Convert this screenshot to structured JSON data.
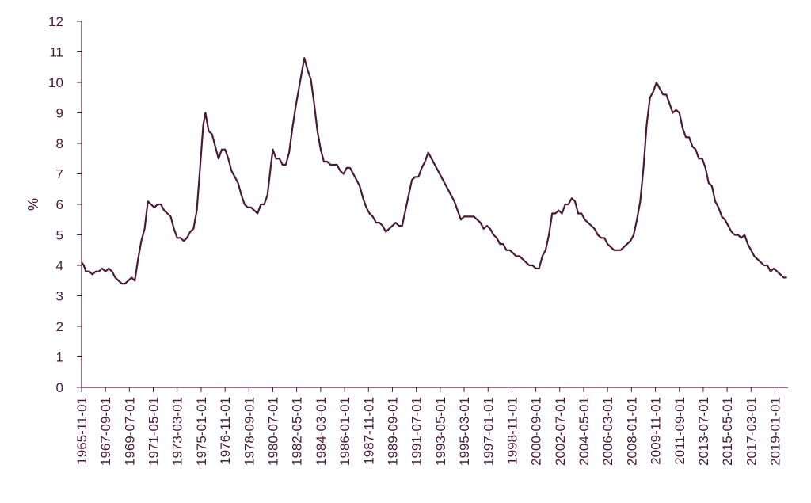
{
  "chart_data": {
    "type": "line",
    "title": "",
    "xlabel": "",
    "ylabel": "%",
    "ylim": [
      0,
      12
    ],
    "yticks": [
      0,
      1,
      2,
      3,
      4,
      5,
      6,
      7,
      8,
      9,
      10,
      11,
      12
    ],
    "xlim": [
      "1965-11-01",
      "2020-01-01"
    ],
    "grid": false,
    "legend": "none",
    "line_color": "#4a1b35",
    "xticks": [
      "1965-11-01",
      "1967-09-01",
      "1969-07-01",
      "1971-05-01",
      "1973-03-01",
      "1975-01-01",
      "1976-11-01",
      "1978-09-01",
      "1980-07-01",
      "1982-05-01",
      "1984-03-01",
      "1986-01-01",
      "1987-11-01",
      "1989-09-01",
      "1991-07-01",
      "1993-05-01",
      "1995-03-01",
      "1997-01-01",
      "1998-11-01",
      "2000-09-01",
      "2002-07-01",
      "2004-05-01",
      "2006-03-01",
      "2008-01-01",
      "2009-11-01",
      "2011-09-01",
      "2013-07-01",
      "2015-05-01",
      "2017-03-01",
      "2019-01-01"
    ],
    "series": [
      {
        "values": [
          [
            "1965-11-01",
            4.1
          ],
          [
            "1966-01-01",
            4.0
          ],
          [
            "1966-03-01",
            3.8
          ],
          [
            "1966-06-01",
            3.8
          ],
          [
            "1966-09-01",
            3.7
          ],
          [
            "1966-12-01",
            3.8
          ],
          [
            "1967-03-01",
            3.8
          ],
          [
            "1967-06-01",
            3.9
          ],
          [
            "1967-09-01",
            3.8
          ],
          [
            "1967-12-01",
            3.9
          ],
          [
            "1968-03-01",
            3.8
          ],
          [
            "1968-06-01",
            3.6
          ],
          [
            "1968-09-01",
            3.5
          ],
          [
            "1968-12-01",
            3.4
          ],
          [
            "1969-03-01",
            3.4
          ],
          [
            "1969-06-01",
            3.5
          ],
          [
            "1969-09-01",
            3.6
          ],
          [
            "1969-12-01",
            3.5
          ],
          [
            "1970-03-01",
            4.2
          ],
          [
            "1970-06-01",
            4.8
          ],
          [
            "1970-09-01",
            5.2
          ],
          [
            "1970-12-01",
            6.1
          ],
          [
            "1971-03-01",
            6.0
          ],
          [
            "1971-06-01",
            5.9
          ],
          [
            "1971-09-01",
            6.0
          ],
          [
            "1971-12-01",
            6.0
          ],
          [
            "1972-03-01",
            5.8
          ],
          [
            "1972-06-01",
            5.7
          ],
          [
            "1972-09-01",
            5.6
          ],
          [
            "1972-12-01",
            5.2
          ],
          [
            "1973-03-01",
            4.9
          ],
          [
            "1973-06-01",
            4.9
          ],
          [
            "1973-09-01",
            4.8
          ],
          [
            "1973-12-01",
            4.9
          ],
          [
            "1974-03-01",
            5.1
          ],
          [
            "1974-06-01",
            5.2
          ],
          [
            "1974-09-01",
            5.8
          ],
          [
            "1974-12-01",
            7.2
          ],
          [
            "1975-03-01",
            8.6
          ],
          [
            "1975-05-01",
            9.0
          ],
          [
            "1975-08-01",
            8.4
          ],
          [
            "1975-11-01",
            8.3
          ],
          [
            "1976-02-01",
            7.9
          ],
          [
            "1976-05-01",
            7.5
          ],
          [
            "1976-08-01",
            7.8
          ],
          [
            "1976-11-01",
            7.8
          ],
          [
            "1977-02-01",
            7.5
          ],
          [
            "1977-05-01",
            7.1
          ],
          [
            "1977-08-01",
            6.9
          ],
          [
            "1977-11-01",
            6.7
          ],
          [
            "1978-02-01",
            6.3
          ],
          [
            "1978-05-01",
            6.0
          ],
          [
            "1978-08-01",
            5.9
          ],
          [
            "1978-11-01",
            5.9
          ],
          [
            "1979-02-01",
            5.8
          ],
          [
            "1979-05-01",
            5.7
          ],
          [
            "1979-08-01",
            6.0
          ],
          [
            "1979-11-01",
            6.0
          ],
          [
            "1980-02-01",
            6.3
          ],
          [
            "1980-05-01",
            7.2
          ],
          [
            "1980-07-01",
            7.8
          ],
          [
            "1980-10-01",
            7.5
          ],
          [
            "1981-01-01",
            7.5
          ],
          [
            "1981-04-01",
            7.3
          ],
          [
            "1981-07-01",
            7.3
          ],
          [
            "1981-10-01",
            7.7
          ],
          [
            "1982-01-01",
            8.5
          ],
          [
            "1982-04-01",
            9.2
          ],
          [
            "1982-07-01",
            9.8
          ],
          [
            "1982-10-01",
            10.4
          ],
          [
            "1982-12-01",
            10.8
          ],
          [
            "1983-03-01",
            10.4
          ],
          [
            "1983-06-01",
            10.1
          ],
          [
            "1983-09-01",
            9.3
          ],
          [
            "1983-12-01",
            8.4
          ],
          [
            "1984-03-01",
            7.8
          ],
          [
            "1984-06-01",
            7.4
          ],
          [
            "1984-09-01",
            7.4
          ],
          [
            "1984-12-01",
            7.3
          ],
          [
            "1985-03-01",
            7.3
          ],
          [
            "1985-06-01",
            7.3
          ],
          [
            "1985-09-01",
            7.1
          ],
          [
            "1985-12-01",
            7.0
          ],
          [
            "1986-03-01",
            7.2
          ],
          [
            "1986-06-01",
            7.2
          ],
          [
            "1986-09-01",
            7.0
          ],
          [
            "1986-12-01",
            6.8
          ],
          [
            "1987-03-01",
            6.6
          ],
          [
            "1987-06-01",
            6.2
          ],
          [
            "1987-09-01",
            5.9
          ],
          [
            "1987-12-01",
            5.7
          ],
          [
            "1988-03-01",
            5.6
          ],
          [
            "1988-06-01",
            5.4
          ],
          [
            "1988-09-01",
            5.4
          ],
          [
            "1988-12-01",
            5.3
          ],
          [
            "1989-03-01",
            5.1
          ],
          [
            "1989-06-01",
            5.2
          ],
          [
            "1989-09-01",
            5.3
          ],
          [
            "1989-12-01",
            5.4
          ],
          [
            "1990-03-01",
            5.3
          ],
          [
            "1990-06-01",
            5.3
          ],
          [
            "1990-09-01",
            5.8
          ],
          [
            "1990-12-01",
            6.3
          ],
          [
            "1991-03-01",
            6.8
          ],
          [
            "1991-06-01",
            6.9
          ],
          [
            "1991-09-01",
            6.9
          ],
          [
            "1991-12-01",
            7.2
          ],
          [
            "1992-03-01",
            7.4
          ],
          [
            "1992-06-01",
            7.7
          ],
          [
            "1992-09-01",
            7.5
          ],
          [
            "1992-12-01",
            7.3
          ],
          [
            "1993-03-01",
            7.1
          ],
          [
            "1993-06-01",
            6.9
          ],
          [
            "1993-09-01",
            6.7
          ],
          [
            "1993-12-01",
            6.5
          ],
          [
            "1994-03-01",
            6.3
          ],
          [
            "1994-06-01",
            6.1
          ],
          [
            "1994-09-01",
            5.8
          ],
          [
            "1994-12-01",
            5.5
          ],
          [
            "1995-03-01",
            5.6
          ],
          [
            "1995-06-01",
            5.6
          ],
          [
            "1995-09-01",
            5.6
          ],
          [
            "1995-12-01",
            5.6
          ],
          [
            "1996-03-01",
            5.5
          ],
          [
            "1996-06-01",
            5.4
          ],
          [
            "1996-09-01",
            5.2
          ],
          [
            "1996-12-01",
            5.3
          ],
          [
            "1997-03-01",
            5.2
          ],
          [
            "1997-06-01",
            5.0
          ],
          [
            "1997-09-01",
            4.9
          ],
          [
            "1997-12-01",
            4.7
          ],
          [
            "1998-03-01",
            4.7
          ],
          [
            "1998-06-01",
            4.5
          ],
          [
            "1998-09-01",
            4.5
          ],
          [
            "1998-12-01",
            4.4
          ],
          [
            "1999-03-01",
            4.3
          ],
          [
            "1999-06-01",
            4.3
          ],
          [
            "1999-09-01",
            4.2
          ],
          [
            "1999-12-01",
            4.1
          ],
          [
            "2000-03-01",
            4.0
          ],
          [
            "2000-06-01",
            4.0
          ],
          [
            "2000-09-01",
            3.9
          ],
          [
            "2000-12-01",
            3.9
          ],
          [
            "2001-03-01",
            4.3
          ],
          [
            "2001-06-01",
            4.5
          ],
          [
            "2001-09-01",
            5.0
          ],
          [
            "2001-12-01",
            5.7
          ],
          [
            "2002-03-01",
            5.7
          ],
          [
            "2002-06-01",
            5.8
          ],
          [
            "2002-09-01",
            5.7
          ],
          [
            "2002-12-01",
            6.0
          ],
          [
            "2003-03-01",
            6.0
          ],
          [
            "2003-06-01",
            6.2
          ],
          [
            "2003-09-01",
            6.1
          ],
          [
            "2003-12-01",
            5.7
          ],
          [
            "2004-03-01",
            5.7
          ],
          [
            "2004-06-01",
            5.5
          ],
          [
            "2004-09-01",
            5.4
          ],
          [
            "2004-12-01",
            5.3
          ],
          [
            "2005-03-01",
            5.2
          ],
          [
            "2005-06-01",
            5.0
          ],
          [
            "2005-09-01",
            4.9
          ],
          [
            "2005-12-01",
            4.9
          ],
          [
            "2006-03-01",
            4.7
          ],
          [
            "2006-06-01",
            4.6
          ],
          [
            "2006-09-01",
            4.5
          ],
          [
            "2006-12-01",
            4.5
          ],
          [
            "2007-03-01",
            4.5
          ],
          [
            "2007-06-01",
            4.6
          ],
          [
            "2007-09-01",
            4.7
          ],
          [
            "2007-12-01",
            4.8
          ],
          [
            "2008-03-01",
            5.0
          ],
          [
            "2008-06-01",
            5.5
          ],
          [
            "2008-09-01",
            6.1
          ],
          [
            "2008-12-01",
            7.2
          ],
          [
            "2009-03-01",
            8.6
          ],
          [
            "2009-06-01",
            9.5
          ],
          [
            "2009-09-01",
            9.7
          ],
          [
            "2009-12-01",
            10.0
          ],
          [
            "2010-03-01",
            9.8
          ],
          [
            "2010-06-01",
            9.6
          ],
          [
            "2010-09-01",
            9.6
          ],
          [
            "2010-12-01",
            9.3
          ],
          [
            "2011-03-01",
            9.0
          ],
          [
            "2011-06-01",
            9.1
          ],
          [
            "2011-09-01",
            9.0
          ],
          [
            "2011-12-01",
            8.5
          ],
          [
            "2012-03-01",
            8.2
          ],
          [
            "2012-06-01",
            8.2
          ],
          [
            "2012-09-01",
            7.9
          ],
          [
            "2012-12-01",
            7.8
          ],
          [
            "2013-03-01",
            7.5
          ],
          [
            "2013-06-01",
            7.5
          ],
          [
            "2013-09-01",
            7.2
          ],
          [
            "2013-12-01",
            6.7
          ],
          [
            "2014-03-01",
            6.6
          ],
          [
            "2014-06-01",
            6.1
          ],
          [
            "2014-09-01",
            5.9
          ],
          [
            "2014-12-01",
            5.6
          ],
          [
            "2015-03-01",
            5.5
          ],
          [
            "2015-06-01",
            5.3
          ],
          [
            "2015-09-01",
            5.1
          ],
          [
            "2015-12-01",
            5.0
          ],
          [
            "2016-03-01",
            5.0
          ],
          [
            "2016-06-01",
            4.9
          ],
          [
            "2016-09-01",
            5.0
          ],
          [
            "2016-12-01",
            4.7
          ],
          [
            "2017-03-01",
            4.5
          ],
          [
            "2017-06-01",
            4.3
          ],
          [
            "2017-09-01",
            4.2
          ],
          [
            "2017-12-01",
            4.1
          ],
          [
            "2018-03-01",
            4.0
          ],
          [
            "2018-06-01",
            4.0
          ],
          [
            "2018-09-01",
            3.8
          ],
          [
            "2018-12-01",
            3.9
          ],
          [
            "2019-03-01",
            3.8
          ],
          [
            "2019-06-01",
            3.7
          ],
          [
            "2019-09-01",
            3.6
          ],
          [
            "2019-12-01",
            3.6
          ]
        ]
      }
    ]
  }
}
